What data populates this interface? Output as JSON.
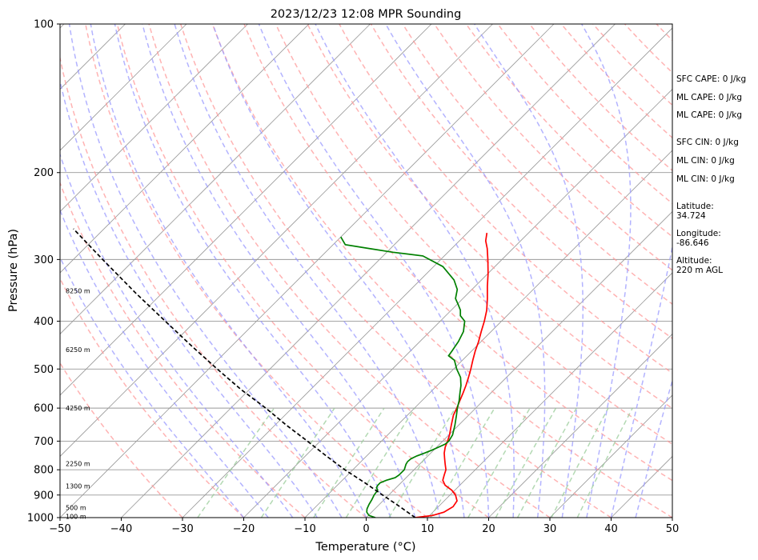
{
  "chart_data": {
    "type": "line",
    "title": "2023/12/23 12:08 MPR Sounding",
    "xlabel": "Temperature (°C)",
    "ylabel": "Pressure (hPa)",
    "xlim": [
      -50,
      50
    ],
    "ylim": [
      1000,
      100
    ],
    "y_scale": "log",
    "x_ticks": [
      "−50",
      "−40",
      "−30",
      "−20",
      "−10",
      "0",
      "10",
      "20",
      "30",
      "40",
      "50"
    ],
    "x_tick_values": [
      -50,
      -40,
      -30,
      -20,
      -10,
      0,
      10,
      20,
      30,
      40,
      50
    ],
    "y_ticks": [
      "100",
      "200",
      "300",
      "400",
      "500",
      "600",
      "700",
      "800",
      "900",
      "1000"
    ],
    "y_tick_values": [
      100,
      200,
      300,
      400,
      500,
      600,
      700,
      800,
      900,
      1000
    ],
    "grid": true,
    "skew": "skew-T log-P",
    "colors": {
      "temperature": "#ff0000",
      "dewpoint": "#008000",
      "parcel": "#000000",
      "dry_adiabats": "#ff9999",
      "moist_adiabats": "#9999ff",
      "mixing_ratio": "#99cc99",
      "isotherms": "#999999"
    },
    "series": [
      {
        "key": "temperature",
        "points": [
          [
            1000,
            8
          ],
          [
            990,
            10.5
          ],
          [
            975,
            11.8
          ],
          [
            950,
            12.4
          ],
          [
            925,
            12.1
          ],
          [
            900,
            10.9
          ],
          [
            880,
            9.5
          ],
          [
            860,
            7.6
          ],
          [
            840,
            6.4
          ],
          [
            820,
            5.8
          ],
          [
            800,
            5.2
          ],
          [
            780,
            4.2
          ],
          [
            760,
            3.2
          ],
          [
            740,
            2.2
          ],
          [
            720,
            1.4
          ],
          [
            700,
            0.8
          ],
          [
            680,
            0.1
          ],
          [
            650,
            -1.2
          ],
          [
            620,
            -2.5
          ],
          [
            600,
            -3.1
          ],
          [
            580,
            -3.8
          ],
          [
            560,
            -4.5
          ],
          [
            540,
            -5.3
          ],
          [
            520,
            -6.2
          ],
          [
            500,
            -7.2
          ],
          [
            480,
            -8.3
          ],
          [
            460,
            -9.4
          ],
          [
            440,
            -10.4
          ],
          [
            420,
            -11.6
          ],
          [
            400,
            -12.8
          ],
          [
            380,
            -14.2
          ],
          [
            360,
            -16.0
          ],
          [
            340,
            -18.0
          ],
          [
            320,
            -20.0
          ],
          [
            300,
            -22.3
          ],
          [
            285,
            -24.2
          ],
          [
            275,
            -25.7
          ],
          [
            265,
            -26.8
          ]
        ]
      },
      {
        "key": "dewpoint",
        "points": [
          [
            1000,
            1.5
          ],
          [
            990,
            0.1
          ],
          [
            975,
            -0.8
          ],
          [
            960,
            -1.3
          ],
          [
            940,
            -1.7
          ],
          [
            920,
            -2.0
          ],
          [
            900,
            -2.4
          ],
          [
            880,
            -2.6
          ],
          [
            870,
            -3.2
          ],
          [
            860,
            -3.4
          ],
          [
            850,
            -3.4
          ],
          [
            840,
            -2.8
          ],
          [
            830,
            -1.8
          ],
          [
            820,
            -1.6
          ],
          [
            800,
            -1.6
          ],
          [
            780,
            -2.2
          ],
          [
            770,
            -2.4
          ],
          [
            760,
            -2.3
          ],
          [
            750,
            -1.8
          ],
          [
            740,
            -1.0
          ],
          [
            730,
            -0.3
          ],
          [
            720,
            0.3
          ],
          [
            710,
            0.9
          ],
          [
            700,
            1.0
          ],
          [
            680,
            0.6
          ],
          [
            650,
            -0.6
          ],
          [
            620,
            -2.0
          ],
          [
            600,
            -3.0
          ],
          [
            580,
            -3.9
          ],
          [
            560,
            -5.0
          ],
          [
            540,
            -6.1
          ],
          [
            520,
            -7.5
          ],
          [
            500,
            -9.5
          ],
          [
            480,
            -11.3
          ],
          [
            470,
            -13.0
          ],
          [
            460,
            -13.2
          ],
          [
            440,
            -13.7
          ],
          [
            420,
            -14.5
          ],
          [
            400,
            -16.0
          ],
          [
            390,
            -17.6
          ],
          [
            380,
            -18.5
          ],
          [
            370,
            -19.8
          ],
          [
            360,
            -21.2
          ],
          [
            345,
            -22.4
          ],
          [
            330,
            -24.5
          ],
          [
            310,
            -28.5
          ],
          [
            295,
            -33.5
          ],
          [
            290,
            -39.0
          ],
          [
            285,
            -43.5
          ],
          [
            280,
            -48.0
          ],
          [
            275,
            -49.0
          ],
          [
            270,
            -50.0
          ]
        ]
      },
      {
        "key": "parcel",
        "points": [
          [
            1000,
            8
          ],
          [
            950,
            3.7
          ],
          [
            900,
            -1.0
          ],
          [
            850,
            -5.9
          ],
          [
            800,
            -11.3
          ],
          [
            750,
            -16.6
          ],
          [
            700,
            -22.1
          ],
          [
            650,
            -28.1
          ],
          [
            600,
            -34.3
          ],
          [
            550,
            -41.4
          ],
          [
            500,
            -48.6
          ],
          [
            450,
            -56.4
          ],
          [
            400,
            -64.9
          ],
          [
            350,
            -74.5
          ],
          [
            300,
            -85.2
          ],
          [
            260,
            -95.0
          ]
        ]
      }
    ],
    "height_labels": [
      {
        "p": 347,
        "text": "8250 m"
      },
      {
        "p": 457,
        "text": "6250 m"
      },
      {
        "p": 600,
        "text": "4250 m"
      },
      {
        "p": 778,
        "text": "2250 m"
      },
      {
        "p": 863,
        "text": "1300 m"
      },
      {
        "p": 955,
        "text": "500 m"
      },
      {
        "p": 995,
        "text": "100 m"
      }
    ]
  },
  "stats": [
    {
      "label": "SFC CAPE: 0 J/kg"
    },
    {
      "label": "ML CAPE: 0 J/kg"
    },
    {
      "label": "ML CAPE: 0 J/kg"
    },
    {
      "label": "SFC CIN: 0 J/kg"
    },
    {
      "label": "ML CIN: 0 J/kg"
    },
    {
      "label": "ML CIN: 0 J/kg"
    },
    {
      "label": "Latitude:",
      "value": "34.724"
    },
    {
      "label": "Longitude:",
      "value": "-86.646"
    },
    {
      "label": "Altitude:",
      "value": "220 m AGL"
    }
  ]
}
